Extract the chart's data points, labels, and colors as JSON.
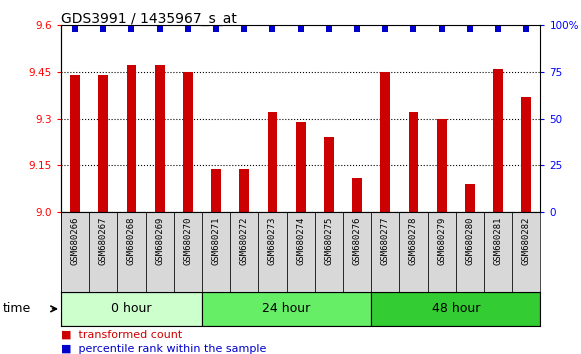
{
  "title": "GDS3991 / 1435967_s_at",
  "samples": [
    "GSM680266",
    "GSM680267",
    "GSM680268",
    "GSM680269",
    "GSM680270",
    "GSM680271",
    "GSM680272",
    "GSM680273",
    "GSM680274",
    "GSM680275",
    "GSM680276",
    "GSM680277",
    "GSM680278",
    "GSM680279",
    "GSM680280",
    "GSM680281",
    "GSM680282"
  ],
  "transformed_count": [
    9.44,
    9.44,
    9.47,
    9.47,
    9.45,
    9.14,
    9.14,
    9.32,
    9.29,
    9.24,
    9.11,
    9.45,
    9.32,
    9.3,
    9.09,
    9.46,
    9.37
  ],
  "bar_color": "#cc0000",
  "dot_color": "#0000cc",
  "groups": [
    {
      "label": "0 hour",
      "start": 0,
      "end": 5,
      "color": "#ccffcc"
    },
    {
      "label": "24 hour",
      "start": 5,
      "end": 11,
      "color": "#66ee66"
    },
    {
      "label": "48 hour",
      "start": 11,
      "end": 17,
      "color": "#33cc33"
    }
  ],
  "ylim_left": [
    9.0,
    9.6
  ],
  "yticks_left": [
    9.0,
    9.15,
    9.3,
    9.45,
    9.6
  ],
  "ylim_right": [
    0,
    100
  ],
  "yticks_right": [
    0,
    25,
    50,
    75,
    100
  ],
  "ytick_labels_right": [
    "0",
    "25",
    "50",
    "75",
    "100%"
  ],
  "bar_width": 0.35,
  "plot_bg_color": "#ffffff",
  "time_label": "time"
}
